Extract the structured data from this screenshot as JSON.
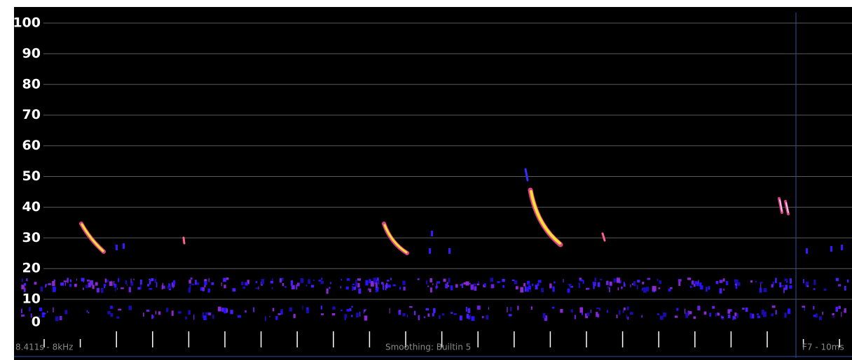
{
  "y_axis": {
    "ticks": [
      100,
      90,
      80,
      70,
      60,
      50,
      40,
      30,
      20,
      10,
      0
    ]
  },
  "status": {
    "left": "8.411s - 8kHz",
    "center": "Smoothing: Builtin 5",
    "right": "F7 - 10ms"
  }
}
